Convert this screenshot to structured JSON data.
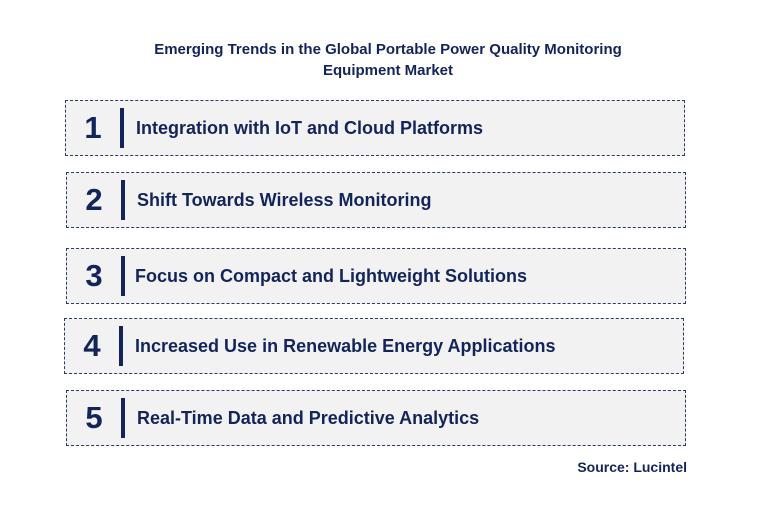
{
  "title_lines": [
    "Emerging Trends in the Global Portable Power Quality Monitoring",
    "Equipment Market"
  ],
  "trends": [
    {
      "number": "1",
      "label": "Integration with IoT and Cloud Platforms"
    },
    {
      "number": "2",
      "label": "Shift Towards Wireless Monitoring"
    },
    {
      "number": "3",
      "label": "Focus on Compact and Lightweight Solutions"
    },
    {
      "number": "4",
      "label": "Increased Use in Renewable Energy Applications"
    },
    {
      "number": "5",
      "label": "Real-Time Data and Predictive Analytics"
    }
  ],
  "source": "Source: Lucintel",
  "colors": {
    "text": "#13245a",
    "box_fill": "#f2f2f2",
    "box_border": "#2a3b66"
  }
}
